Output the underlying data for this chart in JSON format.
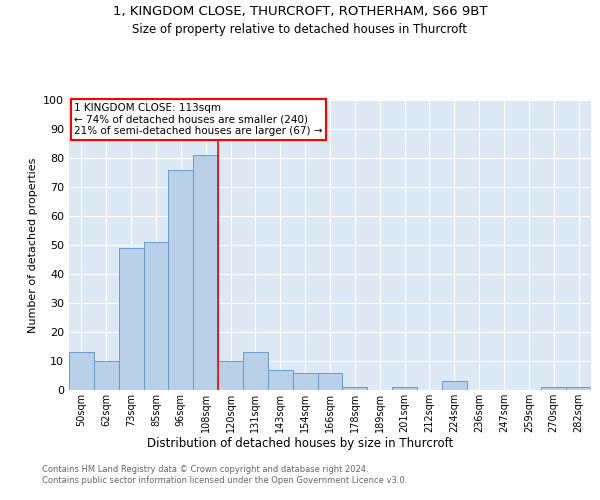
{
  "title1": "1, KINGDOM CLOSE, THURCROFT, ROTHERHAM, S66 9BT",
  "title2": "Size of property relative to detached houses in Thurcroft",
  "xlabel": "Distribution of detached houses by size in Thurcroft",
  "ylabel": "Number of detached properties",
  "footer1": "Contains HM Land Registry data © Crown copyright and database right 2024.",
  "footer2": "Contains public sector information licensed under the Open Government Licence v3.0.",
  "categories": [
    "50sqm",
    "62sqm",
    "73sqm",
    "85sqm",
    "96sqm",
    "108sqm",
    "120sqm",
    "131sqm",
    "143sqm",
    "154sqm",
    "166sqm",
    "178sqm",
    "189sqm",
    "201sqm",
    "212sqm",
    "224sqm",
    "236sqm",
    "247sqm",
    "259sqm",
    "270sqm",
    "282sqm"
  ],
  "values": [
    13,
    10,
    49,
    51,
    76,
    81,
    10,
    13,
    7,
    6,
    6,
    1,
    0,
    1,
    0,
    3,
    0,
    0,
    0,
    1,
    1
  ],
  "bar_color": "#b8d0e8",
  "bar_edge_color": "#6699cc",
  "vline_x": 5.5,
  "vline_color": "red",
  "annotation_text": "1 KINGDOM CLOSE: 113sqm\n← 74% of detached houses are smaller (240)\n21% of semi-detached houses are larger (67) →",
  "annotation_box_color": "white",
  "annotation_box_edge_color": "red",
  "ylim": [
    0,
    100
  ],
  "yticks": [
    0,
    10,
    20,
    30,
    40,
    50,
    60,
    70,
    80,
    90,
    100
  ],
  "plot_bg_color": "#dde8f5",
  "title_fontsize": 9.5,
  "subtitle_fontsize": 8.5,
  "ylabel_text": "Number of detached properties"
}
